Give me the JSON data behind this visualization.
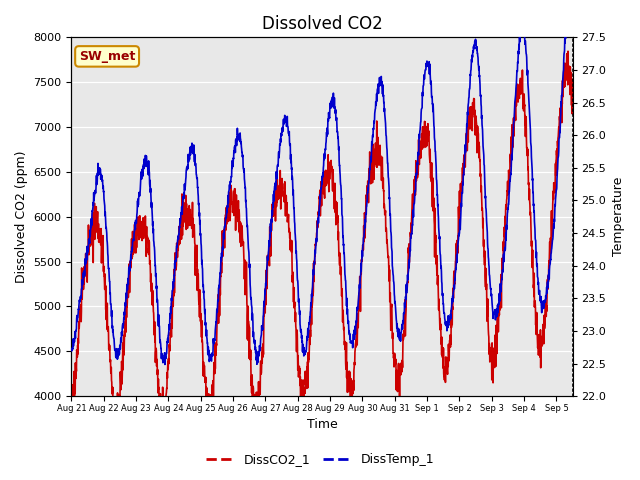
{
  "title": "Dissolved CO2",
  "xlabel": "Time",
  "ylabel_left": "Dissolved CO2 (ppm)",
  "ylabel_right": "Temperature",
  "ylim_left": [
    4000,
    8000
  ],
  "ylim_right": [
    22.0,
    27.5
  ],
  "xtick_labels": [
    "Aug 21",
    "Aug 22",
    "Aug 23",
    "Aug 24",
    "Aug 25",
    "Aug 26",
    "Aug 27",
    "Aug 28",
    "Aug 29",
    "Aug 30",
    "Aug 31",
    "Sep 1",
    "Sep 2",
    "Sep 3",
    "Sep 4",
    "Sep 5"
  ],
  "line1_color": "#cc0000",
  "line2_color": "#0000cc",
  "line1_label": "DissCO2_1",
  "line2_label": "DissTemp_1",
  "legend_box_label": "SW_met",
  "legend_box_facecolor": "#ffffcc",
  "legend_box_edgecolor": "#cc8800",
  "plot_bg_color": "#e8e8e8",
  "fig_bg_color": "#ffffff",
  "title_fontsize": 12,
  "axis_fontsize": 9,
  "tick_fontsize": 8,
  "legend_fontsize": 9,
  "linewidth": 1.2,
  "yticks_left": [
    4000,
    4500,
    5000,
    5500,
    6000,
    6500,
    7000,
    7500,
    8000
  ],
  "yticks_right": [
    22.0,
    22.5,
    23.0,
    23.5,
    24.0,
    24.5,
    25.0,
    25.5,
    26.0,
    26.5,
    27.0,
    27.5
  ]
}
